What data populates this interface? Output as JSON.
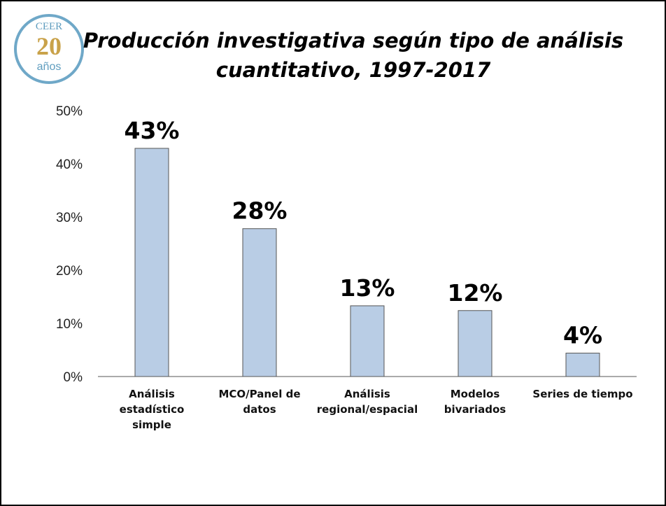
{
  "logo": {
    "top": "CEER",
    "number": "20",
    "bottom": "años"
  },
  "chart_data": {
    "type": "bar",
    "title": [
      "Producción investigativa según tipo de análisis",
      "cuantitativo, 1997-2017"
    ],
    "categories": [
      "Análisis estadístico simple",
      "MCO/Panel de datos",
      "Análisis regional/espacial",
      "Modelos bivariados",
      "Series de tiempo"
    ],
    "values": [
      42.9,
      27.8,
      13.3,
      12.4,
      4.4
    ],
    "value_labels": [
      "43%",
      "28%",
      "13%",
      "12%",
      "4%"
    ],
    "color": "#b9cde5",
    "ylim": [
      0,
      50
    ],
    "yticks": [
      {
        "value": 0,
        "label": "0%"
      },
      {
        "value": 10,
        "label": "10%"
      },
      {
        "value": 20,
        "label": "20%"
      },
      {
        "value": 30,
        "label": "30%"
      },
      {
        "value": 40,
        "label": "40%"
      },
      {
        "value": 50,
        "label": "50%"
      }
    ],
    "grid": false
  }
}
